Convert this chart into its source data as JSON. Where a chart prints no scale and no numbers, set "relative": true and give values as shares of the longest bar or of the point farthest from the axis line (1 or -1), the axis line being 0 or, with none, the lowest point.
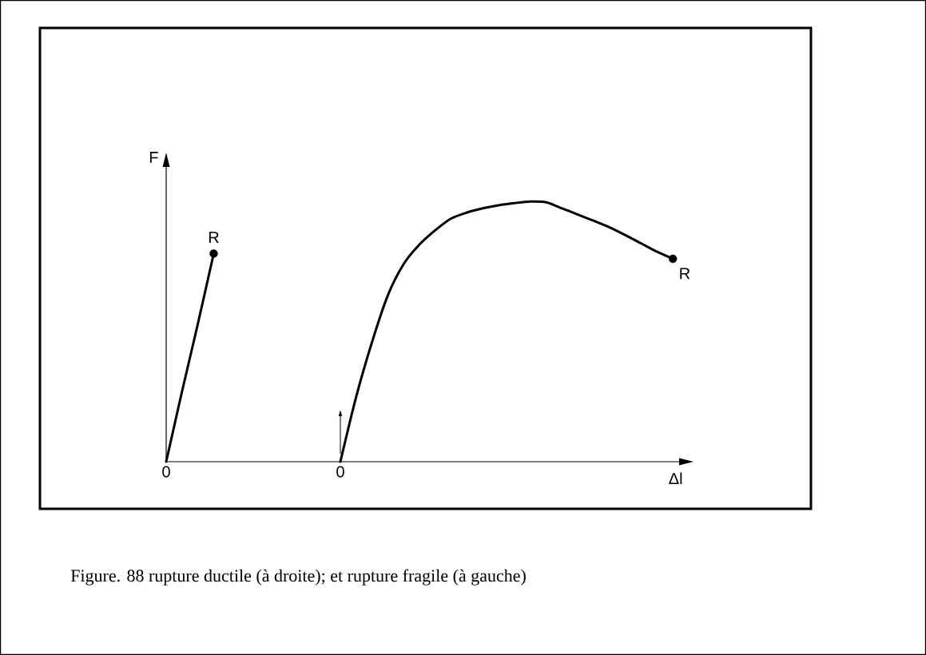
{
  "chart_data": {
    "type": "line",
    "relative": true,
    "xlabel": "Δl",
    "ylabel": "F",
    "tick_labels": "x",
    "marker": "none",
    "line_style": "solid",
    "categories": [
      "0",
      null,
      null,
      null,
      null,
      null,
      null,
      null,
      null,
      null,
      null,
      "0",
      null,
      null,
      null,
      null,
      null,
      null,
      null,
      null,
      null,
      null,
      null,
      null,
      null,
      null,
      null,
      null,
      null,
      null,
      null,
      null,
      null
    ],
    "series": [
      {
        "color": "#000000",
        "values": [
          0,
          0.27,
          0.53,
          0.8,
          null,
          null,
          null,
          null,
          null,
          null,
          null,
          null,
          null,
          null,
          null,
          null,
          null,
          null,
          null,
          null,
          null,
          null,
          null,
          null,
          null,
          null,
          null,
          null,
          null,
          null,
          null,
          null,
          null
        ]
      },
      {
        "color": "#000000",
        "values": [
          null,
          null,
          null,
          null,
          null,
          null,
          null,
          null,
          null,
          null,
          null,
          0,
          0.25,
          0.46,
          0.64,
          0.76,
          0.835,
          0.89,
          0.935,
          0.958,
          0.974,
          0.986,
          0.994,
          1,
          0.997,
          0.974,
          0.95,
          0.926,
          0.901,
          0.871,
          0.839,
          0.807,
          0.78
        ]
      },
      {
        "type": "scatter",
        "name": "R",
        "color": "#000000",
        "marker": "circle",
        "values": [
          null,
          null,
          null,
          0.8,
          null,
          null,
          null,
          null,
          null,
          null,
          null,
          null,
          null,
          null,
          null,
          null,
          null,
          null,
          null,
          null,
          null,
          null,
          null,
          null,
          null,
          null,
          null,
          null,
          null,
          null,
          null,
          null,
          null
        ]
      },
      {
        "type": "scatter",
        "name": "R",
        "color": "#000000",
        "marker": "circle",
        "values": [
          null,
          null,
          null,
          null,
          null,
          null,
          null,
          null,
          null,
          null,
          null,
          null,
          null,
          null,
          null,
          null,
          null,
          null,
          null,
          null,
          null,
          null,
          null,
          null,
          null,
          null,
          null,
          null,
          null,
          null,
          null,
          null,
          0.78
        ]
      }
    ],
    "annotations": [
      "Figure. 88 rupture ductile (à droite); et rupture fragile (à gauche)"
    ]
  }
}
